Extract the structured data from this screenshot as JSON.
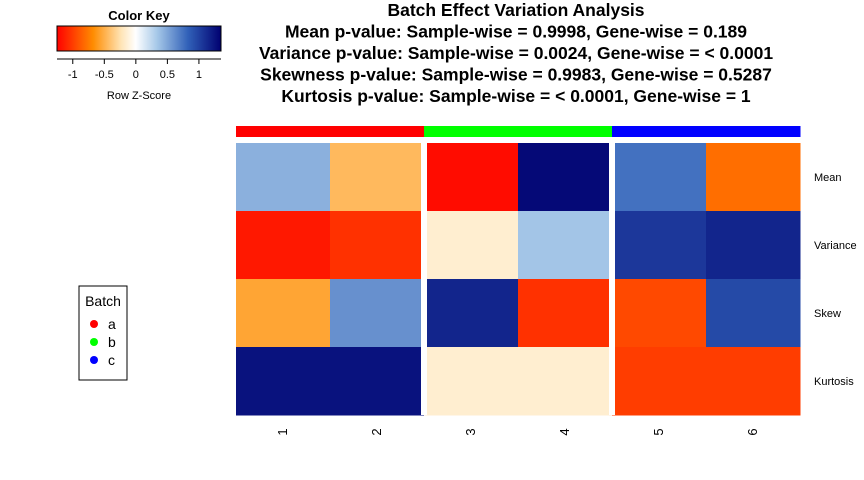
{
  "chart_data": {
    "type": "heatmap",
    "title_lines": [
      "Batch Effect Variation Analysis",
      "Mean p-value: Sample-wise = 0.9998, Gene-wise = 0.189",
      "Variance p-value: Sample-wise = 0.0024, Gene-wise = < 0.0001",
      "Skewness p-value: Sample-wise = 0.9983, Gene-wise = 0.5287",
      "Kurtosis p-value: Sample-wise = < 0.0001, Gene-wise = 1"
    ],
    "rows": [
      "Mean",
      "Variance",
      "Skew",
      "Kurtosis"
    ],
    "columns": [
      "1",
      "2",
      "3",
      "4",
      "5",
      "6"
    ],
    "column_batches": [
      "a",
      "a",
      "b",
      "b",
      "c",
      "c"
    ],
    "values": [
      [
        0.45,
        -0.45,
        -1.2,
        1.3,
        0.75,
        -0.8
      ],
      [
        -1.15,
        -1.05,
        -0.15,
        0.35,
        1.05,
        1.15
      ],
      [
        -0.55,
        0.6,
        1.15,
        -1.05,
        -0.95,
        0.95
      ],
      [
        1.25,
        1.25,
        -0.15,
        -0.15,
        -1.0,
        -1.0
      ]
    ],
    "color_key": {
      "title": "Color Key",
      "xlabel": "Row Z-Score",
      "ticks": [
        "-1",
        "-0.5",
        "0",
        "0.5",
        "1"
      ],
      "range": [
        -1.25,
        1.35
      ]
    },
    "legend": {
      "title": "Batch",
      "items": [
        {
          "label": "a",
          "color": "#ff0000"
        },
        {
          "label": "b",
          "color": "#00ff00"
        },
        {
          "label": "c",
          "color": "#0000ff"
        }
      ],
      "placement": "left"
    }
  }
}
